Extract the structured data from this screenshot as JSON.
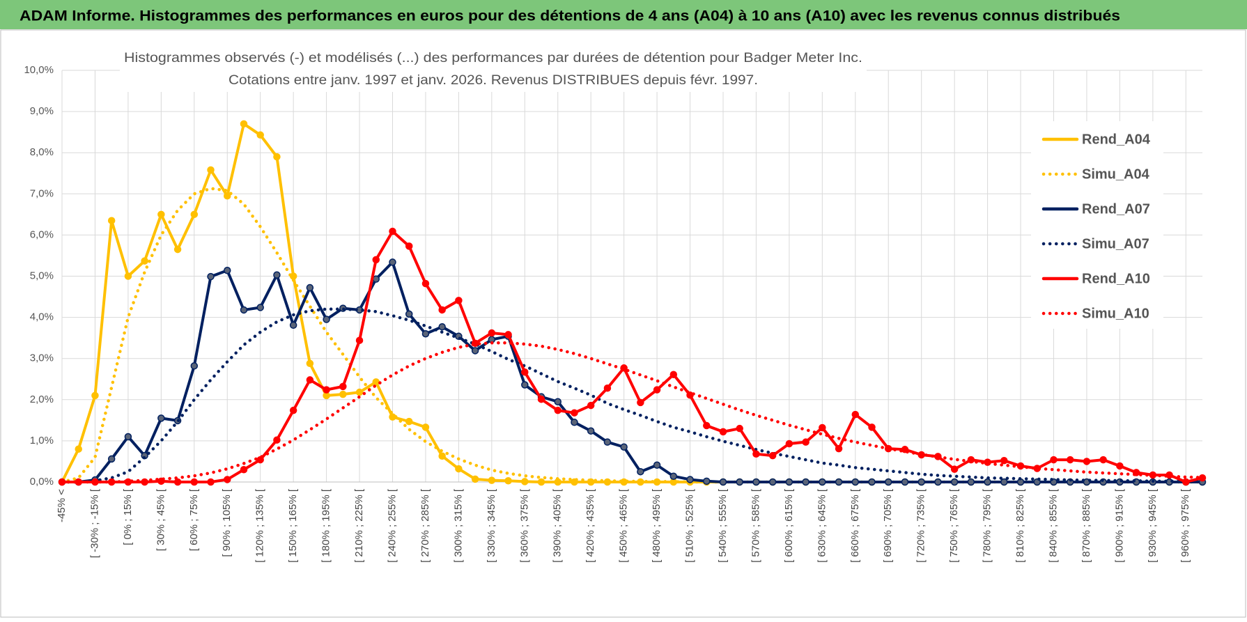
{
  "chart_data": {
    "type": "line",
    "header": "ADAM Informe. Histogrammes des performances en euros pour des détentions de 4 ans (A04) à 10 ans (A10) avec les revenus connus distribués",
    "title": [
      "Histogrammes observés (-) et modélisés (...) des performances par durées de détention pour Badger Meter Inc.",
      "Cotations entre janv. 1997 et janv. 2026. Revenus DISTRIBUES depuis févr. 1997."
    ],
    "categories": [
      "-45% <",
      null,
      "[ -30% ; -15% [",
      null,
      "[ 0% ; 15% [",
      null,
      "[ 30% ; 45% [",
      null,
      "[ 60% ; 75% [",
      null,
      "[ 90% ; 105% [",
      null,
      "[ 120% ; 135% [",
      null,
      "[ 150% ; 165% [",
      null,
      "[ 180% ; 195% [",
      null,
      "[ 210% ; 225% [",
      null,
      "[ 240% ; 255% [",
      null,
      "[ 270% ; 285% [",
      null,
      "[ 300% ; 315% [",
      null,
      "[ 330% ; 345% [",
      null,
      "[ 360% ; 375% [",
      null,
      "[ 390% ; 405% [",
      null,
      "[ 420% ; 435% [",
      null,
      "[ 450% ; 465% [",
      null,
      "[ 480% ; 495% [",
      null,
      "[ 510% ; 525% [",
      null,
      "[ 540% ; 555% [",
      null,
      "[ 570% ; 585% [",
      null,
      "[ 600% ; 615% [",
      null,
      "[ 630% ; 645% [",
      null,
      "[ 660% ; 675% [",
      null,
      "[ 690% ; 705% [",
      null,
      "[ 720% ; 735% [",
      null,
      "[ 750% ; 765% [",
      null,
      "[ 780% ; 795% [",
      null,
      "[ 810% ; 825% [",
      null,
      "[ 840% ; 855% [",
      null,
      "[ 870% ; 885% [",
      null,
      "[ 900% ; 915% [",
      null,
      "[ 930% ; 945% [",
      null,
      "[ 960% ; 975% [",
      null
    ],
    "series": [
      {
        "name": "Rend_A04",
        "color": "#ffc000",
        "style": "solid",
        "values": [
          0,
          0.8,
          2.1,
          6.35,
          5.0,
          5.37,
          6.5,
          5.65,
          6.5,
          7.58,
          6.95,
          8.7,
          8.43,
          7.9,
          5.0,
          2.88,
          2.1,
          2.13,
          2.18,
          2.43,
          1.58,
          1.47,
          1.33,
          0.63,
          0.32,
          0.07,
          0.04,
          0.03,
          0.01,
          0,
          0,
          0,
          0,
          0,
          0,
          0,
          0,
          0,
          0,
          0,
          0,
          0,
          0,
          0,
          0,
          0,
          0,
          0,
          0,
          0,
          0,
          0,
          0,
          0,
          0,
          0,
          0,
          0,
          0,
          0,
          0,
          0,
          0,
          0,
          0,
          0,
          0,
          0,
          0,
          0
        ]
      },
      {
        "name": "Simu_A04",
        "color": "#ffc000",
        "style": "dotted",
        "values": [
          0,
          0.1,
          0.6,
          2.3,
          4.0,
          5.1,
          6.0,
          6.6,
          7.0,
          7.13,
          7.08,
          6.75,
          6.2,
          5.57,
          4.9,
          4.27,
          3.64,
          3.1,
          2.55,
          2.05,
          1.66,
          1.28,
          0.98,
          0.75,
          0.56,
          0.41,
          0.29,
          0.21,
          0.15,
          0.11,
          0.08,
          0.06,
          0.04,
          0.03,
          0.02,
          0.015,
          0.01,
          0.01,
          0,
          0,
          0,
          0,
          0,
          0,
          0,
          0,
          0,
          0,
          0,
          0,
          0,
          0,
          0,
          0,
          0,
          0,
          0,
          0,
          0,
          0,
          0,
          0,
          0,
          0,
          0,
          0,
          0,
          0,
          0,
          0
        ]
      },
      {
        "name": "Rend_A07",
        "color": "#002060",
        "style": "solid",
        "values": [
          0,
          0,
          0.05,
          0.56,
          1.1,
          0.64,
          1.55,
          1.49,
          2.82,
          4.99,
          5.14,
          4.18,
          4.24,
          5.03,
          3.81,
          4.72,
          3.95,
          4.22,
          4.18,
          4.93,
          5.34,
          4.08,
          3.6,
          3.77,
          3.54,
          3.19,
          3.46,
          3.54,
          2.36,
          2.07,
          1.95,
          1.45,
          1.24,
          0.97,
          0.85,
          0.25,
          0.41,
          0.14,
          0.06,
          0.02,
          0,
          0,
          0,
          0,
          0,
          0,
          0,
          0,
          0,
          0,
          0,
          0,
          0,
          0,
          0,
          0,
          0,
          0,
          0,
          0,
          0,
          0,
          0,
          0,
          0,
          0,
          0,
          0,
          0,
          0
        ]
      },
      {
        "name": "Simu_A07",
        "color": "#002060",
        "style": "dotted",
        "values": [
          0,
          0,
          0.03,
          0.1,
          0.25,
          0.6,
          1.0,
          1.47,
          2.0,
          2.48,
          2.92,
          3.33,
          3.64,
          3.89,
          4.06,
          4.16,
          4.2,
          4.2,
          4.18,
          4.14,
          4.04,
          3.93,
          3.79,
          3.64,
          3.5,
          3.35,
          3.17,
          2.98,
          2.82,
          2.63,
          2.44,
          2.28,
          2.11,
          1.91,
          1.76,
          1.62,
          1.47,
          1.33,
          1.22,
          1.1,
          0.99,
          0.89,
          0.79,
          0.7,
          0.62,
          0.54,
          0.46,
          0.41,
          0.35,
          0.31,
          0.27,
          0.23,
          0.19,
          0.16,
          0.14,
          0.12,
          0.1,
          0.09,
          0.08,
          0.07,
          0.06,
          0.05,
          0.04,
          0.04,
          0.03,
          0.03,
          0.02,
          0.02,
          0.02,
          0.01
        ]
      },
      {
        "name": "Rend_A10",
        "color": "#ff0000",
        "style": "solid",
        "values": [
          0,
          0,
          0,
          0,
          0,
          0,
          0.02,
          0,
          0,
          0,
          0.06,
          0.3,
          0.54,
          1.02,
          1.74,
          2.48,
          2.24,
          2.32,
          3.44,
          5.4,
          6.09,
          5.73,
          4.82,
          4.18,
          4.41,
          3.37,
          3.62,
          3.58,
          2.67,
          2.01,
          1.74,
          1.68,
          1.86,
          2.28,
          2.77,
          1.93,
          2.24,
          2.61,
          2.11,
          1.37,
          1.22,
          1.3,
          0.68,
          0.64,
          0.93,
          0.97,
          1.32,
          0.81,
          1.64,
          1.33,
          0.81,
          0.79,
          0.66,
          0.62,
          0.31,
          0.54,
          0.48,
          0.52,
          0.39,
          0.33,
          0.54,
          0.54,
          0.5,
          0.54,
          0.39,
          0.23,
          0.17,
          0.17,
          0,
          0.1
        ]
      },
      {
        "name": "Simu_A10",
        "color": "#ff0000",
        "style": "dotted",
        "values": [
          0,
          0,
          0,
          0,
          0.02,
          0.04,
          0.07,
          0.1,
          0.15,
          0.22,
          0.32,
          0.45,
          0.6,
          0.8,
          1.02,
          1.27,
          1.53,
          1.8,
          2.07,
          2.35,
          2.6,
          2.82,
          3.0,
          3.15,
          3.27,
          3.35,
          3.38,
          3.38,
          3.35,
          3.3,
          3.22,
          3.12,
          3.0,
          2.87,
          2.74,
          2.6,
          2.46,
          2.31,
          2.17,
          2.03,
          1.89,
          1.75,
          1.62,
          1.5,
          1.38,
          1.27,
          1.16,
          1.06,
          0.97,
          0.89,
          0.81,
          0.74,
          0.67,
          0.61,
          0.55,
          0.5,
          0.45,
          0.41,
          0.37,
          0.33,
          0.3,
          0.27,
          0.24,
          0.22,
          0.2,
          0.18,
          0.16,
          0.14,
          0.12,
          0.11
        ]
      }
    ],
    "ylim": [
      0,
      10
    ],
    "yticks": [
      {
        "value": 0,
        "label": "0,0%"
      },
      {
        "value": 1,
        "label": "1,0%"
      },
      {
        "value": 2,
        "label": "2,0%"
      },
      {
        "value": 3,
        "label": "3,0%"
      },
      {
        "value": 4,
        "label": "4,0%"
      },
      {
        "value": 5,
        "label": "5,0%"
      },
      {
        "value": 6,
        "label": "6,0%"
      },
      {
        "value": 7,
        "label": "7,0%"
      },
      {
        "value": 8,
        "label": "8,0%"
      },
      {
        "value": 9,
        "label": "9,0%"
      },
      {
        "value": 10,
        "label": "10,0%"
      }
    ],
    "grid": true,
    "legend": "right"
  }
}
